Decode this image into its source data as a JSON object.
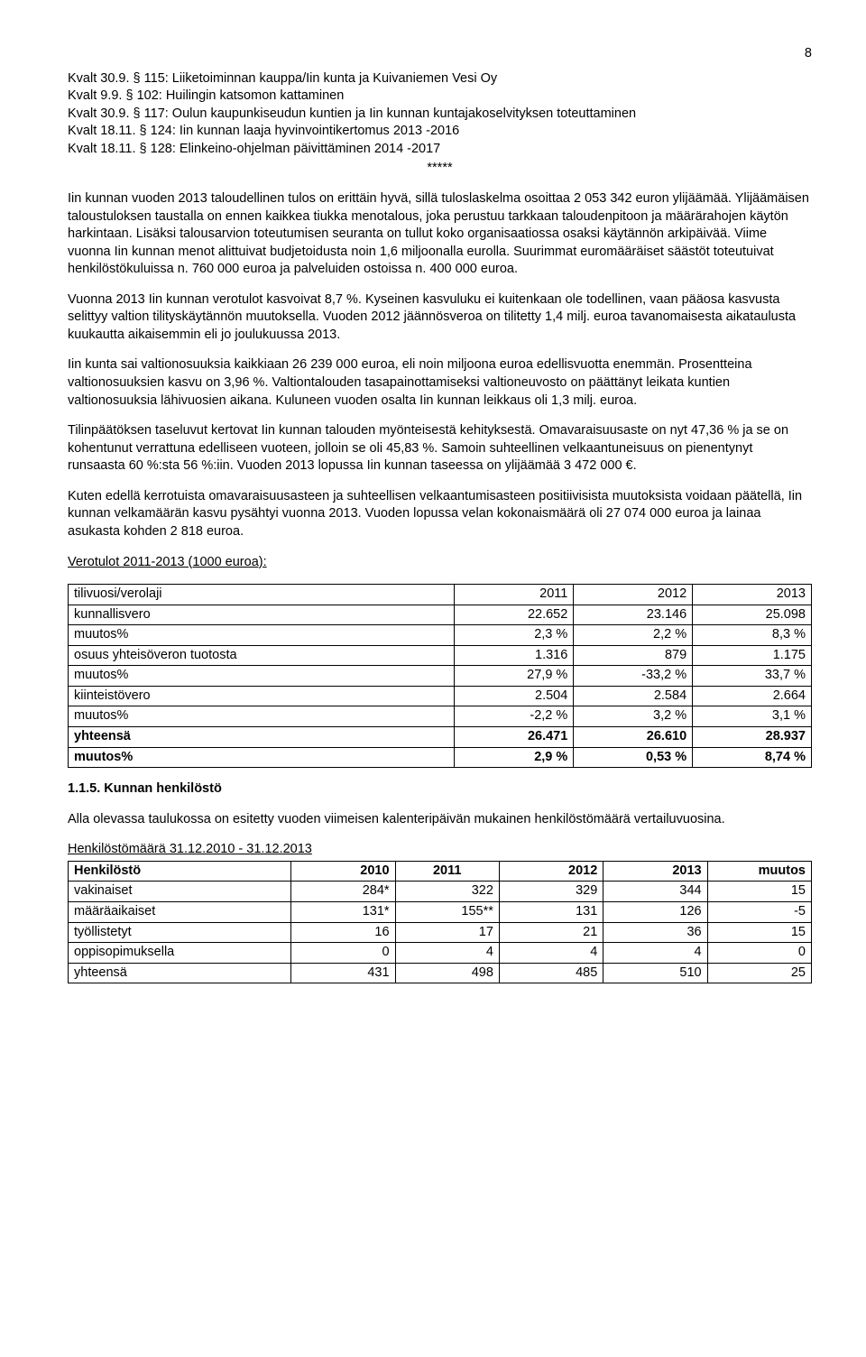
{
  "page_number": "8",
  "kvalt_lines": [
    "Kvalt 30.9. § 115: Liiketoiminnan kauppa/Iin kunta ja Kuivaniemen Vesi Oy",
    "Kvalt 9.9. § 102: Huilingin katsomon kattaminen",
    "Kvalt 30.9. § 117: Oulun kaupunkiseudun kuntien ja Iin kunnan kuntajakoselvityksen toteuttaminen",
    "Kvalt 18.11. § 124: Iin kunnan laaja hyvinvointikertomus 2013 -2016",
    "Kvalt 18.11. § 128: Elinkeino-ohjelman päivittäminen 2014 -2017"
  ],
  "stars": "*****",
  "p1": "Iin kunnan vuoden 2013 taloudellinen tulos on erittäin hyvä, sillä tuloslaskelma osoittaa 2 053 342 euron ylijäämää. Ylijäämäisen taloustuloksen taustalla on ennen kaikkea tiukka menotalous, joka perustuu tarkkaan taloudenpitoon ja määrärahojen käytön harkintaan. Lisäksi talousarvion toteutumisen seuranta on tullut koko organisaatiossa osaksi käytännön arkipäivää. Viime vuonna Iin kunnan menot alittuivat budjetoidusta noin 1,6 miljoonalla eurolla. Suurimmat euromääräiset säästöt toteutuivat henkilöstökuluissa n. 760 000 euroa ja palveluiden ostoissa n. 400 000 euroa.",
  "p2": "Vuonna 2013 Iin kunnan verotulot kasvoivat 8,7 %. Kyseinen kasvuluku ei kuitenkaan ole todellinen, vaan pääosa kasvusta selittyy valtion tilityskäytännön muutoksella. Vuoden 2012 jäännösveroa on tilitetty 1,4 milj. euroa tavanomaisesta aikataulusta kuukautta aikaisemmin eli jo joulukuussa 2013.",
  "p3": "Iin kunta sai valtionosuuksia kaikkiaan 26 239 000 euroa, eli noin miljoona euroa edellisvuotta enemmän. Prosentteina valtionosuuksien kasvu on 3,96 %.  Valtiontalouden tasapainottamiseksi valtioneuvosto on päättänyt leikata kuntien valtionosuuksia lähivuosien aikana. Kuluneen vuoden osalta Iin kunnan leikkaus oli 1,3 milj. euroa.",
  "p4": "Tilinpäätöksen taseluvut kertovat Iin kunnan talouden myönteisestä kehityksestä. Omavaraisuusaste on nyt 47,36 % ja se on kohentunut verrattuna edelliseen vuoteen, jolloin se oli 45,83 %. Samoin suhteellinen velkaantuneisuus on pienentynyt runsaasta 60 %:sta 56 %:iin. Vuoden 2013 lopussa Iin kunnan taseessa on ylijäämää 3 472 000 €.",
  "p5": "Kuten edellä kerrotuista omavaraisuusasteen ja suhteellisen velkaantumisasteen positiivisista muutoksista voidaan päätellä, Iin kunnan velkamäärän kasvu pysähtyi vuonna 2013. Vuoden lopussa velan kokonaismäärä oli 27 074 000 euroa ja lainaa asukasta kohden 2 818 euroa.",
  "vero_heading": "Verotulot 2011-2013 (1000 euroa):",
  "vero_table": {
    "columns": [
      "tilivuosi/verolaji",
      "2011",
      "2012",
      "2013"
    ],
    "col_align": [
      "left",
      "right",
      "right",
      "right"
    ],
    "col_widths": [
      "52%",
      "16%",
      "16%",
      "16%"
    ],
    "rows": [
      [
        "kunnallisvero",
        "22.652",
        "23.146",
        "25.098"
      ],
      [
        "muutos%",
        "2,3 %",
        "2,2 %",
        "8,3 %"
      ],
      [
        "osuus yhteisöveron tuotosta",
        "1.316",
        "879",
        "1.175"
      ],
      [
        "muutos%",
        "27,9 %",
        "-33,2 %",
        "33,7 %"
      ],
      [
        "kiinteistövero",
        "2.504",
        "2.584",
        "2.664"
      ],
      [
        "muutos%",
        "-2,2 %",
        "3,2 %",
        "3,1 %"
      ]
    ],
    "bold_rows": [
      [
        "yhteensä",
        "26.471",
        "26.610",
        "28.937"
      ],
      [
        "muutos%",
        "2,9 %",
        "0,53 %",
        "8,74 %"
      ]
    ]
  },
  "section_1_1_5": "1.1.5. Kunnan henkilöstö",
  "p6": "Alla olevassa taulukossa on esitetty vuoden viimeisen kalenteripäivän mukainen henkilöstömäärä vertailuvuosina.",
  "henk_caption": "Henkilöstömäärä 31.12.2010 -  31.12.2013",
  "henk_table": {
    "columns": [
      "Henkilöstö",
      "2010",
      "2011",
      "2012",
      "2013",
      "muutos"
    ],
    "col_align": [
      "left",
      "right",
      "right",
      "right",
      "right",
      "right"
    ],
    "col_widths": [
      "30%",
      "14%",
      "14%",
      "14%",
      "14%",
      "14%"
    ],
    "rows": [
      [
        "vakinaiset",
        "284*",
        "322",
        "329",
        "344",
        "15"
      ],
      [
        "määräaikaiset",
        "131*",
        "155**",
        "131",
        "126",
        "-5"
      ],
      [
        "työllistetyt",
        "16",
        "17",
        "21",
        "36",
        "15"
      ],
      [
        "oppisopimuksella",
        "0",
        "4",
        "4",
        "4",
        "0"
      ],
      [
        "yhteensä",
        "431",
        "498",
        "485",
        "510",
        "25"
      ]
    ]
  }
}
